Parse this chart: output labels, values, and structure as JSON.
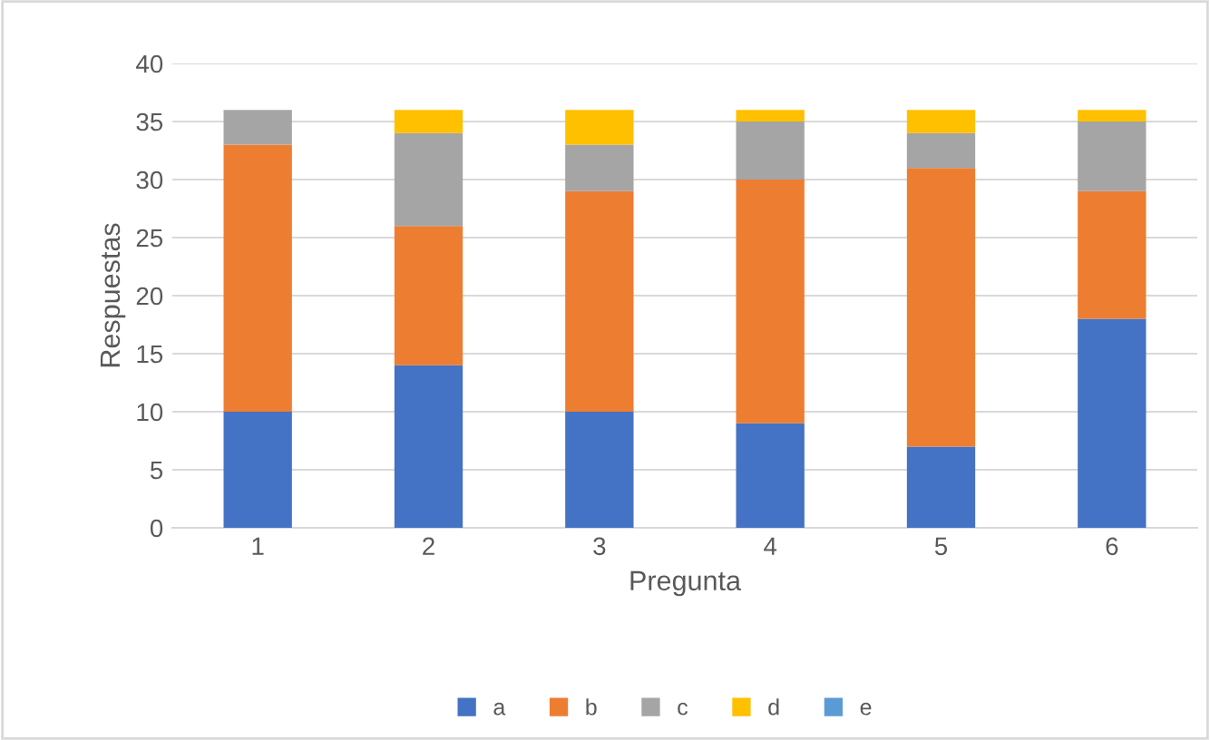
{
  "chart_data": {
    "type": "bar",
    "stacked": true,
    "xlabel": "Pregunta",
    "ylabel": "Respuestas",
    "categories": [
      "1",
      "2",
      "3",
      "4",
      "5",
      "6"
    ],
    "series": [
      {
        "name": "a",
        "color": "#4472c4",
        "values": [
          10,
          14,
          10,
          9,
          7,
          18
        ]
      },
      {
        "name": "b",
        "color": "#ed7d31",
        "values": [
          23,
          12,
          19,
          21,
          24,
          11
        ]
      },
      {
        "name": "c",
        "color": "#a5a5a5",
        "values": [
          3,
          8,
          4,
          5,
          3,
          6
        ]
      },
      {
        "name": "d",
        "color": "#ffc000",
        "values": [
          0,
          2,
          3,
          1,
          2,
          1
        ]
      },
      {
        "name": "e",
        "color": "#5b9bd5",
        "values": [
          0,
          0,
          0,
          0,
          0,
          0
        ]
      }
    ],
    "ylim": [
      0,
      40
    ],
    "yticks": [
      0,
      5,
      10,
      15,
      20,
      25,
      30,
      35,
      40
    ],
    "grid": "y",
    "legend": "bottom"
  }
}
